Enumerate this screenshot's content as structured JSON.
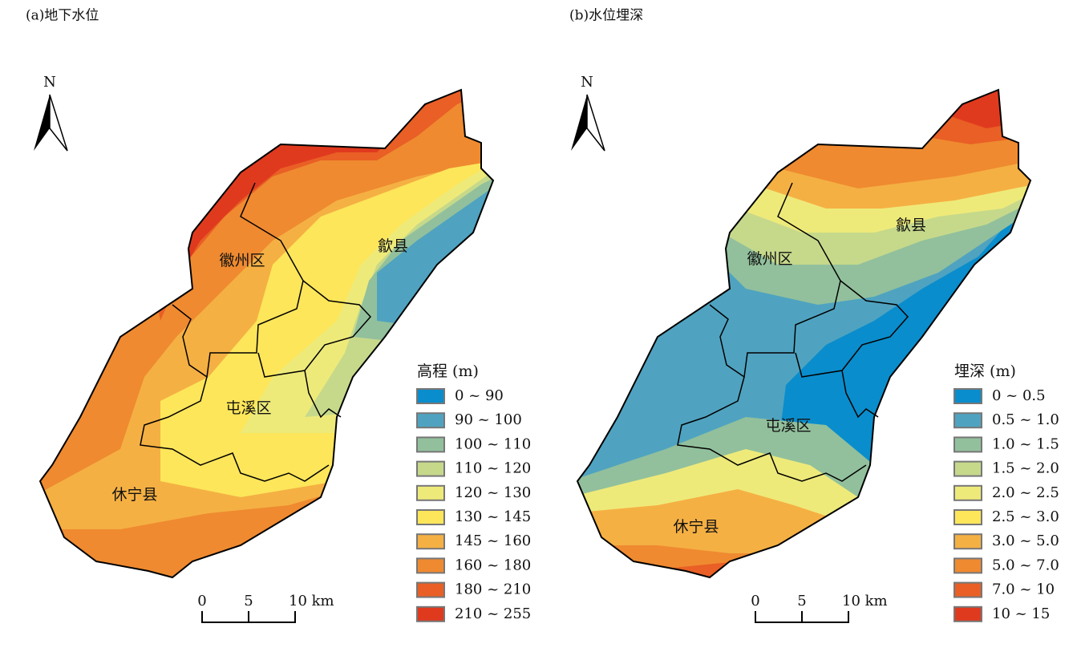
{
  "panels": [
    {
      "title": "(a)地下水位",
      "north": "N",
      "regions": [
        "徽州区",
        "歙县",
        "屯溪区",
        "休宁县"
      ],
      "legend": {
        "title": "高程 (m)",
        "items": [
          {
            "label": "0 ~ 90",
            "color": "#0a8dcc"
          },
          {
            "label": "90 ~ 100",
            "color": "#4fa3c0"
          },
          {
            "label": "100 ~ 110",
            "color": "#92c09c"
          },
          {
            "label": "110 ~ 120",
            "color": "#c6d98b"
          },
          {
            "label": "120 ~ 130",
            "color": "#eeea7a"
          },
          {
            "label": "130 ~ 145",
            "color": "#fde65a"
          },
          {
            "label": "145 ~ 160",
            "color": "#f5b043"
          },
          {
            "label": "160 ~ 180",
            "color": "#ef8a30"
          },
          {
            "label": "180 ~ 210",
            "color": "#e95f25"
          },
          {
            "label": "210 ~ 255",
            "color": "#e03a1e"
          }
        ]
      },
      "scale": [
        "0",
        "5",
        "10 km"
      ]
    },
    {
      "title": "(b)水位埋深",
      "north": "N",
      "regions": [
        "徽州区",
        "歙县",
        "屯溪区",
        "休宁县"
      ],
      "legend": {
        "title": "埋深 (m)",
        "items": [
          {
            "label": "0 ~ 0.5",
            "color": "#0a8dcc"
          },
          {
            "label": "0.5 ~ 1.0",
            "color": "#4fa3c0"
          },
          {
            "label": "1.0 ~ 1.5",
            "color": "#92c09c"
          },
          {
            "label": "1.5 ~ 2.0",
            "color": "#c6d98b"
          },
          {
            "label": "2.0 ~ 2.5",
            "color": "#eeea7a"
          },
          {
            "label": "2.5 ~ 3.0",
            "color": "#fde65a"
          },
          {
            "label": "3.0 ~ 5.0",
            "color": "#f5b043"
          },
          {
            "label": "5.0 ~ 7.0",
            "color": "#ef8a30"
          },
          {
            "label": "7.0 ~ 10",
            "color": "#e95f25"
          },
          {
            "label": "10 ~ 15",
            "color": "#e03a1e"
          }
        ]
      },
      "scale": [
        "0",
        "5",
        "10 km"
      ]
    }
  ]
}
